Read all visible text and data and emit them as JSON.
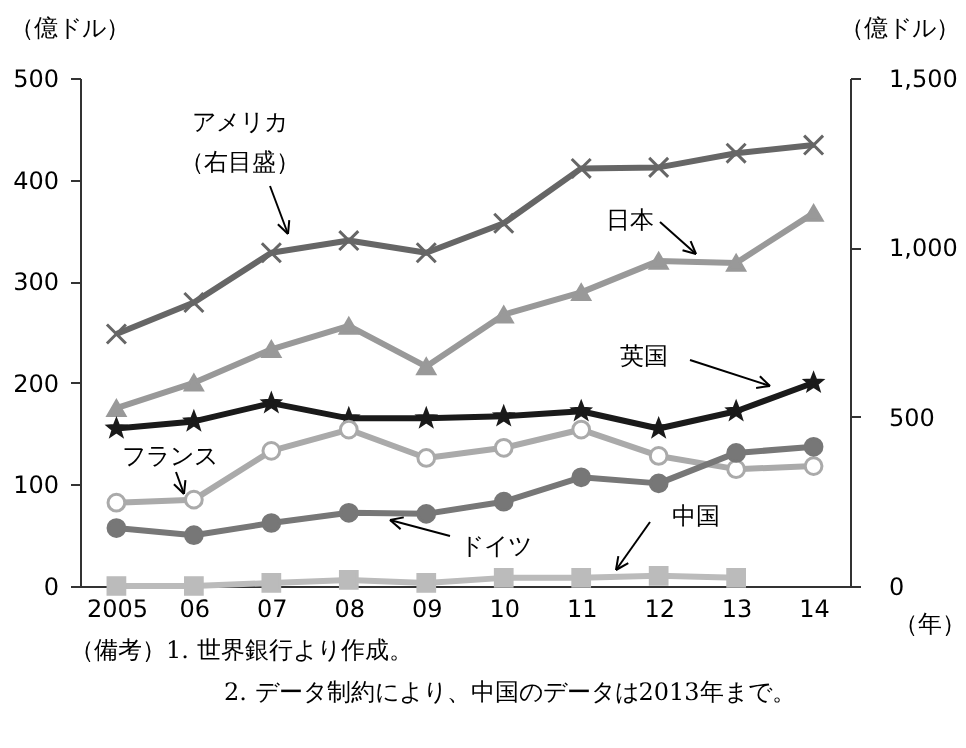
{
  "chart_data": {
    "type": "line",
    "categories": [
      "2005",
      "06",
      "07",
      "08",
      "09",
      "10",
      "11",
      "12",
      "13",
      "14"
    ],
    "xlabel": "（年）",
    "ylabel": "（億ドル）",
    "y2label": "（億ドル）",
    "ylim": [
      0,
      500
    ],
    "yticks": [
      0,
      100,
      200,
      300,
      400,
      500
    ],
    "y2lim": [
      0,
      1500
    ],
    "y2ticks": [
      0,
      500,
      {
        "value": 1000,
        "label": "1,000"
      },
      {
        "value": 1500,
        "label": "1,500"
      }
    ],
    "grid": false,
    "series": [
      {
        "name": "アメリカ（右目盛）",
        "axis": "y2",
        "color": "#666666",
        "marker": "cross",
        "values": [
          744,
          837,
          984,
          1020,
          984,
          1071,
          1233,
          1236,
          1278,
          1302
        ]
      },
      {
        "name": "日本",
        "color": "#999999",
        "marker": "triangle",
        "values": [
          175,
          200,
          233,
          256,
          216,
          267,
          289,
          320,
          318,
          367
        ]
      },
      {
        "name": "英国",
        "color": "#1a1a1a",
        "marker": "star",
        "values": [
          155,
          162,
          180,
          165,
          165,
          167,
          172,
          155,
          172,
          200
        ]
      },
      {
        "name": "フランス",
        "color": "#aaaaaa",
        "marker": "circle",
        "values": [
          82,
          85,
          133,
          154,
          126,
          136,
          154,
          128,
          115,
          118
        ]
      },
      {
        "name": "ドイツ",
        "color": "#777777",
        "marker": "circle",
        "values": [
          57,
          50,
          62,
          72,
          71,
          83,
          107,
          101,
          131,
          137
        ]
      },
      {
        "name": "中国",
        "color": "#bbbbbb",
        "marker": "square",
        "values": [
          0,
          0,
          3,
          6,
          3,
          8,
          8,
          10,
          8,
          null
        ]
      }
    ],
    "annotations": [
      "（備考）1.  世界銀行より作成。",
      "2.  データ制約により、中国のデータは2013年まで。"
    ]
  }
}
